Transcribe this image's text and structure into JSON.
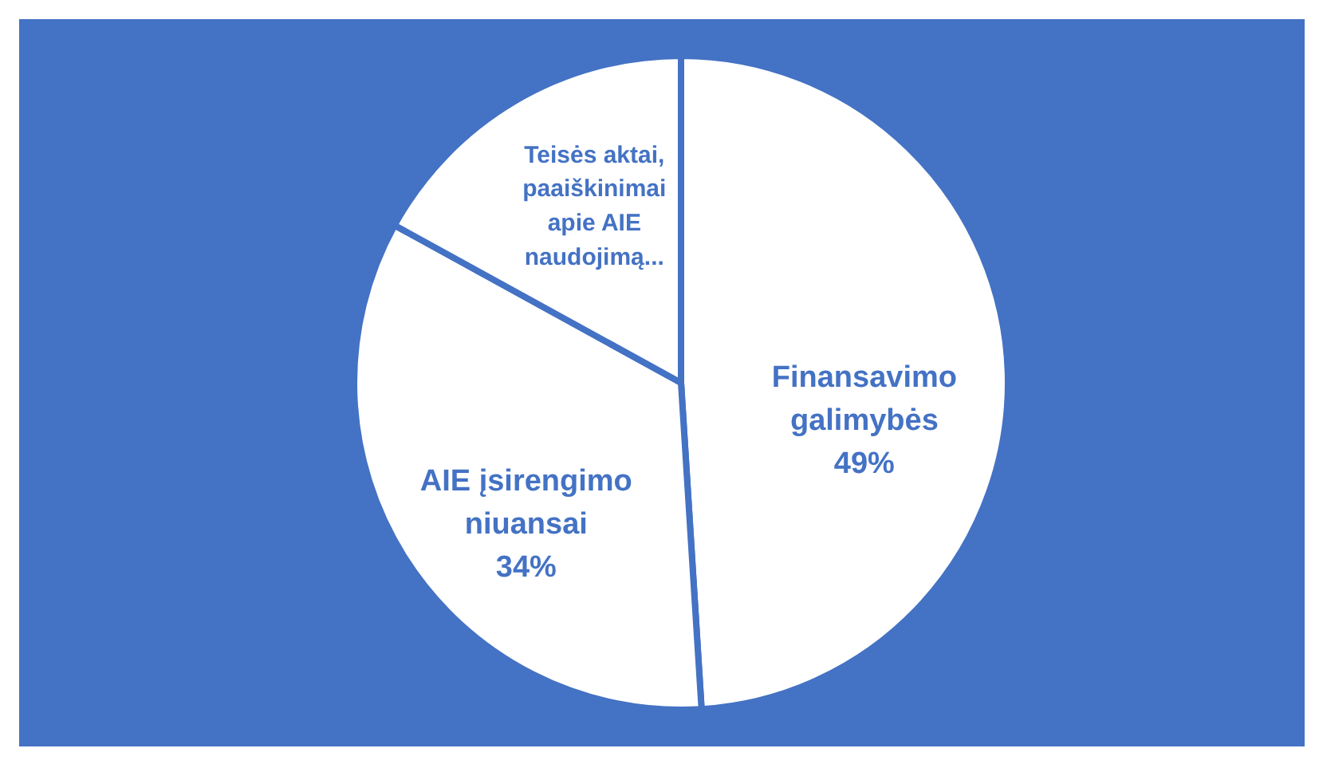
{
  "chart_data": {
    "type": "pie",
    "categories": [
      "Finansavimo galimybės",
      "AIE įsirengimo niuansai",
      "Teisės aktai, paaiškinimai apie AIE naudojimą..."
    ],
    "values": [
      49,
      34,
      17
    ],
    "colors": [
      "#ffffff",
      "#ffffff",
      "#ffffff"
    ],
    "value_labels": [
      "49%",
      "34%",
      null
    ]
  }
}
